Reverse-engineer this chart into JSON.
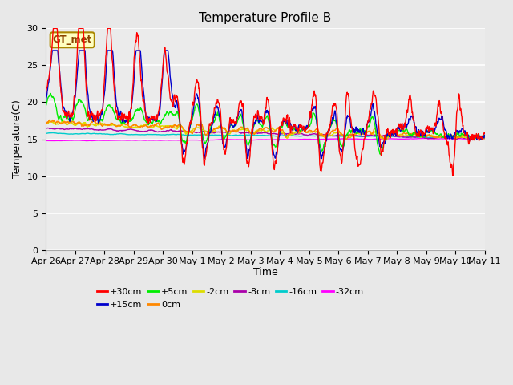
{
  "title": "Temperature Profile B",
  "xlabel": "Time",
  "ylabel": "Temperature(C)",
  "annotation": "GT_met",
  "ylim": [
    0,
    30
  ],
  "xlim": [
    0,
    15
  ],
  "xtick_labels": [
    "Apr 26",
    "Apr 27",
    "Apr 28",
    "Apr 29",
    "Apr 30",
    "May 1",
    "May 2",
    "May 3",
    "May 4",
    "May 5",
    "May 6",
    "May 7",
    "May 8",
    "May 9",
    "May 10",
    "May 11"
  ],
  "ytick_values": [
    0,
    5,
    10,
    15,
    20,
    25,
    30
  ],
  "series_colors": {
    "+30cm": "#ff0000",
    "+15cm": "#0000cc",
    "+5cm": "#00ee00",
    "0cm": "#ff8800",
    "-2cm": "#dddd00",
    "-8cm": "#aa00aa",
    "-16cm": "#00cccc",
    "-32cm": "#ff00ff"
  },
  "background_color": "#e8e8e8",
  "plot_bg_color": "#ebebeb",
  "grid_color": "#ffffff",
  "title_fontsize": 11,
  "tick_fontsize": 8,
  "ylabel_fontsize": 9
}
